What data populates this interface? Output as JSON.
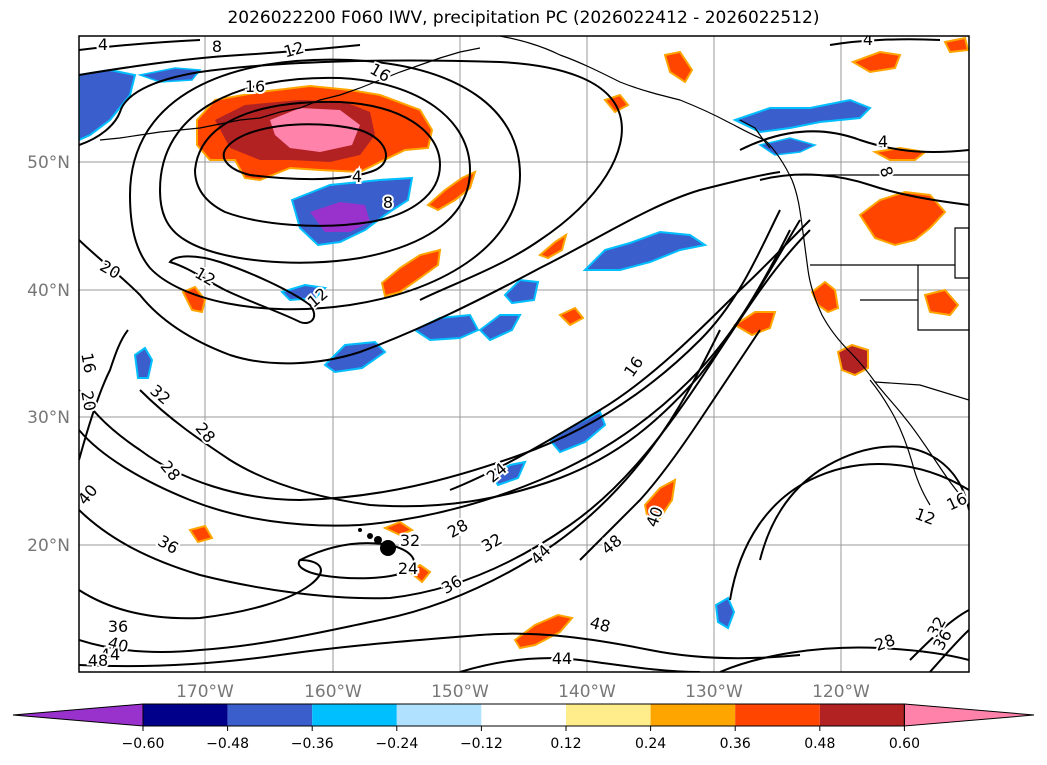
{
  "title": "2026022200 F060 IWV, precipitation PC (2026022412 - 2026022512)",
  "axes": {
    "lat_labels": [
      "50°N",
      "40°N",
      "30°N",
      "20°N"
    ],
    "lon_labels": [
      "170°W",
      "160°W",
      "150°W",
      "140°W",
      "130°W",
      "120°W"
    ]
  },
  "colorbar": {
    "ticks": [
      "−0.60",
      "−0.48",
      "−0.36",
      "−0.24",
      "−0.12",
      "0.12",
      "0.24",
      "0.36",
      "0.48",
      "0.60"
    ],
    "colors": [
      "#9932cc",
      "#00008b",
      "#3a5fcd",
      "#00bfff",
      "#b0e2ff",
      "#ffffff",
      "#ffec8b",
      "#ffa500",
      "#ff4500",
      "#b22222",
      "#ff82ab"
    ],
    "extend": "both"
  },
  "contour_labels": [
    {
      "text": "4",
      "name": "contour-label-4-nw"
    },
    {
      "text": "8",
      "name": "contour-label-8-north"
    },
    {
      "text": "12",
      "name": "contour-label-12-north"
    },
    {
      "text": "16",
      "name": "contour-label-16-north"
    },
    {
      "text": "16",
      "name": "contour-label-16-low"
    },
    {
      "text": "4",
      "name": "contour-label-4-low"
    },
    {
      "text": "8",
      "name": "contour-label-8-low"
    },
    {
      "text": "12",
      "name": "contour-label-12-west"
    },
    {
      "text": "12",
      "name": "contour-label-12-central"
    },
    {
      "text": "20",
      "name": "contour-label-20-west"
    },
    {
      "text": "16",
      "name": "contour-label-16-edge"
    },
    {
      "text": "20",
      "name": "contour-label-20-edge"
    },
    {
      "text": "32",
      "name": "contour-label-32-west"
    },
    {
      "text": "28",
      "name": "contour-label-28-west"
    },
    {
      "text": "28",
      "name": "contour-label-28-sw"
    },
    {
      "text": "40",
      "name": "contour-label-40-edge"
    },
    {
      "text": "36",
      "name": "contour-label-36-sw"
    },
    {
      "text": "16",
      "name": "contour-label-16-mid"
    },
    {
      "text": "24",
      "name": "contour-label-24-mid"
    },
    {
      "text": "28",
      "name": "contour-label-28-hawaii"
    },
    {
      "text": "32",
      "name": "contour-label-32-hawaii"
    },
    {
      "text": "32",
      "name": "contour-label-32-south"
    },
    {
      "text": "24",
      "name": "contour-label-24-hawaii"
    },
    {
      "text": "36",
      "name": "contour-label-36-south"
    },
    {
      "text": "44",
      "name": "contour-label-44-mid"
    },
    {
      "text": "48",
      "name": "contour-label-48-mid"
    },
    {
      "text": "40",
      "name": "contour-label-40-mid"
    },
    {
      "text": "48",
      "name": "contour-label-48-south"
    },
    {
      "text": "44",
      "name": "contour-label-44-south"
    },
    {
      "text": "36",
      "name": "contour-label-36-bottomleft"
    },
    {
      "text": "40",
      "name": "contour-label-40-bottomleft"
    },
    {
      "text": "44",
      "name": "contour-label-44-bottomleft"
    },
    {
      "text": "48",
      "name": "contour-label-48-bottomleft"
    },
    {
      "text": "12",
      "name": "contour-label-12-east"
    },
    {
      "text": "16",
      "name": "contour-label-16-east"
    },
    {
      "text": "28",
      "name": "contour-label-28-east"
    },
    {
      "text": "32",
      "name": "contour-label-32-east"
    },
    {
      "text": "36",
      "name": "contour-label-36-east"
    },
    {
      "text": "8",
      "name": "contour-label-8-coast"
    },
    {
      "text": "4",
      "name": "contour-label-4-coast"
    },
    {
      "text": "4",
      "name": "contour-label-4-ne"
    }
  ]
}
